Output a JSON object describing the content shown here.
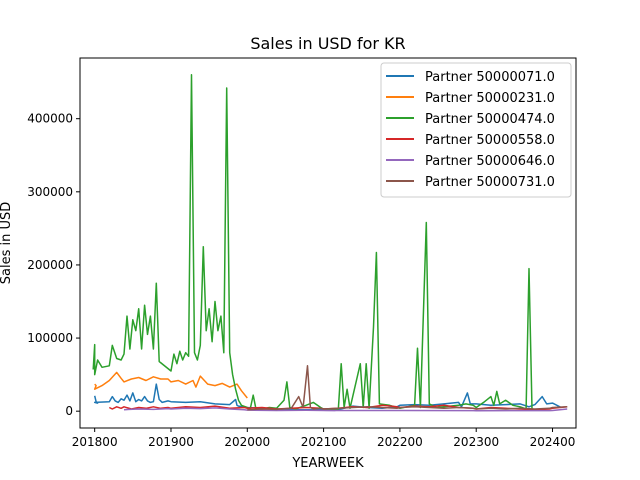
{
  "chart_data": {
    "type": "line",
    "title": "Sales in USD for KR",
    "xlabel": "YEARWEEK",
    "ylabel": "Sales in USD",
    "xlim": [
      201742,
      202416
    ],
    "ylim": [
      -23000,
      483000
    ],
    "x_ticks": [
      201800,
      201900,
      202000,
      202100,
      202200,
      202300,
      202400
    ],
    "x_tick_labels": [
      "201800",
      "201900",
      "202000",
      "202100",
      "202200",
      "202300",
      "202400"
    ],
    "y_ticks": [
      0,
      100000,
      200000,
      300000,
      400000
    ],
    "y_tick_labels": [
      "0",
      "100000",
      "200000",
      "300000",
      "400000"
    ],
    "grid": false,
    "legend": {
      "position": "top-right"
    },
    "series": [
      {
        "name": "Partner 50000071.0",
        "color": "#1f77b4",
        "points": [
          [
            201752,
            21000
          ],
          [
            201753,
            13000
          ],
          [
            201754,
            11000
          ],
          [
            201800,
            12000
          ],
          [
            201810,
            13000
          ],
          [
            201812,
            20000
          ],
          [
            201814,
            14000
          ],
          [
            201816,
            12000
          ],
          [
            201818,
            17000
          ],
          [
            201820,
            15000
          ],
          [
            201822,
            22000
          ],
          [
            201824,
            14000
          ],
          [
            201826,
            25000
          ],
          [
            201828,
            13000
          ],
          [
            201830,
            16000
          ],
          [
            201832,
            14000
          ],
          [
            201834,
            20000
          ],
          [
            201836,
            14000
          ],
          [
            201838,
            12000
          ],
          [
            201840,
            13000
          ],
          [
            201842,
            37000
          ],
          [
            201844,
            16000
          ],
          [
            201846,
            12000
          ],
          [
            201850,
            14000
          ],
          [
            201900,
            13000
          ],
          [
            201910,
            12000
          ],
          [
            201920,
            13000
          ],
          [
            201930,
            10000
          ],
          [
            201940,
            9000
          ],
          [
            201944,
            16000
          ],
          [
            201945,
            8000
          ],
          [
            201946,
            7000
          ],
          [
            202000,
            5000
          ],
          [
            202010,
            4000
          ],
          [
            202020,
            3000
          ],
          [
            202030,
            2000
          ],
          [
            202040,
            2000
          ],
          [
            202050,
            2000
          ],
          [
            202100,
            3000
          ],
          [
            202110,
            2000
          ],
          [
            202120,
            7000
          ],
          [
            202130,
            5000
          ],
          [
            202140,
            4000
          ],
          [
            202150,
            6000
          ],
          [
            202200,
            8000
          ],
          [
            202210,
            9000
          ],
          [
            202220,
            8000
          ],
          [
            202230,
            10000
          ],
          [
            202240,
            12000
          ],
          [
            202242,
            6000
          ],
          [
            202246,
            25000
          ],
          [
            202248,
            10000
          ],
          [
            202300,
            10000
          ],
          [
            202310,
            8000
          ],
          [
            202320,
            9000
          ],
          [
            202330,
            10000
          ],
          [
            202336,
            6000
          ],
          [
            202340,
            9000
          ],
          [
            202345,
            20000
          ],
          [
            202348,
            10000
          ],
          [
            202400,
            11000
          ],
          [
            202406,
            5000
          ]
        ]
      },
      {
        "name": "Partner 50000231.0",
        "color": "#ff7f0e",
        "points": [
          [
            201752,
            37000
          ],
          [
            201753,
            35000
          ],
          [
            201800,
            30000
          ],
          [
            201805,
            35000
          ],
          [
            201810,
            42000
          ],
          [
            201815,
            53000
          ],
          [
            201818,
            45000
          ],
          [
            201820,
            40000
          ],
          [
            201825,
            44000
          ],
          [
            201830,
            46000
          ],
          [
            201835,
            42000
          ],
          [
            201840,
            47000
          ],
          [
            201845,
            44000
          ],
          [
            201850,
            44000
          ],
          [
            201900,
            40000
          ],
          [
            201905,
            42000
          ],
          [
            201910,
            37000
          ],
          [
            201915,
            42000
          ],
          [
            201917,
            33000
          ],
          [
            201920,
            48000
          ],
          [
            201925,
            37000
          ],
          [
            201930,
            35000
          ],
          [
            201935,
            38000
          ],
          [
            201940,
            33000
          ],
          [
            201945,
            37000
          ],
          [
            201948,
            28000
          ],
          [
            202000,
            18000
          ]
        ]
      },
      {
        "name": "Partner 50000474.0",
        "color": "#2ca02c",
        "points": [
          [
            201751,
            57000
          ],
          [
            201752,
            91000
          ],
          [
            201800,
            50000
          ],
          [
            201802,
            70000
          ],
          [
            201805,
            60000
          ],
          [
            201810,
            62000
          ],
          [
            201812,
            90000
          ],
          [
            201815,
            72000
          ],
          [
            201818,
            70000
          ],
          [
            201820,
            78000
          ],
          [
            201822,
            130000
          ],
          [
            201824,
            85000
          ],
          [
            201826,
            125000
          ],
          [
            201828,
            110000
          ],
          [
            201830,
            140000
          ],
          [
            201832,
            85000
          ],
          [
            201834,
            145000
          ],
          [
            201836,
            105000
          ],
          [
            201838,
            130000
          ],
          [
            201840,
            85000
          ],
          [
            201842,
            175000
          ],
          [
            201844,
            68000
          ],
          [
            201900,
            55000
          ],
          [
            201902,
            78000
          ],
          [
            201904,
            65000
          ],
          [
            201906,
            82000
          ],
          [
            201908,
            70000
          ],
          [
            201910,
            80000
          ],
          [
            201912,
            75000
          ],
          [
            201914,
            460000
          ],
          [
            201916,
            80000
          ],
          [
            201918,
            70000
          ],
          [
            201920,
            90000
          ],
          [
            201922,
            225000
          ],
          [
            201924,
            110000
          ],
          [
            201926,
            140000
          ],
          [
            201928,
            95000
          ],
          [
            201930,
            150000
          ],
          [
            201932,
            110000
          ],
          [
            201934,
            130000
          ],
          [
            201936,
            80000
          ],
          [
            201938,
            442000
          ],
          [
            201940,
            80000
          ],
          [
            201942,
            50000
          ],
          [
            201944,
            30000
          ],
          [
            201946,
            15000
          ],
          [
            201948,
            8000
          ],
          [
            202000,
            5000
          ],
          [
            202002,
            3000
          ],
          [
            202004,
            22000
          ],
          [
            202006,
            2000
          ],
          [
            202010,
            3000
          ],
          [
            202015,
            5000
          ],
          [
            202020,
            4000
          ],
          [
            202025,
            15000
          ],
          [
            202027,
            40000
          ],
          [
            202029,
            5000
          ],
          [
            202033,
            3000
          ],
          [
            202040,
            8000
          ],
          [
            202045,
            12000
          ],
          [
            202050,
            5000
          ],
          [
            202100,
            3000
          ],
          [
            202110,
            2000
          ],
          [
            202112,
            65000
          ],
          [
            202114,
            5000
          ],
          [
            202116,
            30000
          ],
          [
            202118,
            4000
          ],
          [
            202125,
            65000
          ],
          [
            202127,
            5000
          ],
          [
            202129,
            65000
          ],
          [
            202131,
            4000
          ],
          [
            202134,
            115000
          ],
          [
            202136,
            217000
          ],
          [
            202138,
            10000
          ],
          [
            202145,
            8000
          ],
          [
            202150,
            5000
          ],
          [
            202200,
            4000
          ],
          [
            202210,
            8000
          ],
          [
            202212,
            86000
          ],
          [
            202214,
            5000
          ],
          [
            202218,
            258000
          ],
          [
            202220,
            10000
          ],
          [
            202225,
            5000
          ],
          [
            202230,
            6000
          ],
          [
            202240,
            8000
          ],
          [
            202245,
            10000
          ],
          [
            202250,
            8000
          ],
          [
            202300,
            5000
          ],
          [
            202305,
            12000
          ],
          [
            202310,
            20000
          ],
          [
            202312,
            8000
          ],
          [
            202314,
            27000
          ],
          [
            202316,
            10000
          ],
          [
            202320,
            15000
          ],
          [
            202325,
            8000
          ],
          [
            202330,
            6000
          ],
          [
            202334,
            3000
          ],
          [
            202336,
            195000
          ],
          [
            202338,
            3000
          ]
        ]
      },
      {
        "name": "Partner 50000558.0",
        "color": "#d62728",
        "points": [
          [
            201810,
            5000
          ],
          [
            201812,
            3000
          ],
          [
            201815,
            6000
          ],
          [
            201818,
            4000
          ],
          [
            201820,
            6000
          ],
          [
            201825,
            3000
          ],
          [
            201830,
            5000
          ],
          [
            201835,
            4000
          ],
          [
            201840,
            6000
          ],
          [
            201845,
            4000
          ],
          [
            201850,
            5000
          ],
          [
            201900,
            4000
          ],
          [
            201910,
            6000
          ],
          [
            201920,
            5000
          ],
          [
            201930,
            7000
          ],
          [
            201940,
            4000
          ],
          [
            201950,
            5000
          ],
          [
            202000,
            4000
          ],
          [
            202010,
            5000
          ],
          [
            202020,
            3000
          ],
          [
            202030,
            4000
          ],
          [
            202040,
            5000
          ],
          [
            202050,
            4000
          ],
          [
            202100,
            3000
          ],
          [
            202110,
            4000
          ],
          [
            202120,
            6000
          ],
          [
            202130,
            5000
          ],
          [
            202140,
            8000
          ],
          [
            202150,
            6000
          ],
          [
            202200,
            5000
          ],
          [
            202210,
            7000
          ],
          [
            202220,
            6000
          ],
          [
            202230,
            8000
          ],
          [
            202240,
            5000
          ],
          [
            202250,
            4000
          ],
          [
            202300,
            3000
          ],
          [
            202310,
            5000
          ],
          [
            202320,
            4000
          ],
          [
            202330,
            3000
          ],
          [
            202340,
            2000
          ],
          [
            202350,
            3000
          ],
          [
            202400,
            4000
          ],
          [
            202405,
            5000
          ],
          [
            202410,
            6000
          ]
        ]
      },
      {
        "name": "Partner 50000646.0",
        "color": "#9467bd",
        "points": [
          [
            201820,
            2000
          ],
          [
            201830,
            3000
          ],
          [
            201840,
            2500
          ],
          [
            201850,
            3500
          ],
          [
            201900,
            3000
          ],
          [
            201910,
            4000
          ],
          [
            201920,
            3500
          ],
          [
            201930,
            4500
          ],
          [
            201940,
            3000
          ],
          [
            201950,
            2000
          ],
          [
            202000,
            1500
          ],
          [
            202020,
            1000
          ],
          [
            202040,
            1200
          ],
          [
            202060,
            800
          ],
          [
            202100,
            900
          ],
          [
            202150,
            1000
          ],
          [
            202200,
            900
          ],
          [
            202250,
            800
          ],
          [
            202300,
            700
          ],
          [
            202350,
            800
          ],
          [
            202400,
            1000
          ],
          [
            202405,
            2000
          ],
          [
            202410,
            3000
          ]
        ]
      },
      {
        "name": "Partner 50000731.0",
        "color": "#8c564b",
        "points": [
          [
            202000,
            2000
          ],
          [
            202010,
            3000
          ],
          [
            202020,
            2500
          ],
          [
            202030,
            4000
          ],
          [
            202035,
            20000
          ],
          [
            202038,
            5000
          ],
          [
            202041,
            62000
          ],
          [
            202043,
            5000
          ],
          [
            202045,
            3000
          ],
          [
            202050,
            4000
          ],
          [
            202100,
            3000
          ],
          [
            202110,
            4000
          ],
          [
            202120,
            5000
          ],
          [
            202130,
            6000
          ],
          [
            202140,
            5000
          ],
          [
            202150,
            4000
          ],
          [
            202200,
            5000
          ],
          [
            202210,
            6000
          ],
          [
            202220,
            5000
          ],
          [
            202230,
            4000
          ],
          [
            202240,
            5000
          ],
          [
            202250,
            4000
          ],
          [
            202300,
            3000
          ],
          [
            202310,
            4000
          ],
          [
            202320,
            3000
          ],
          [
            202330,
            4000
          ],
          [
            202340,
            3000
          ],
          [
            202350,
            4000
          ],
          [
            202400,
            5000
          ],
          [
            202410,
            6000
          ]
        ]
      }
    ]
  }
}
